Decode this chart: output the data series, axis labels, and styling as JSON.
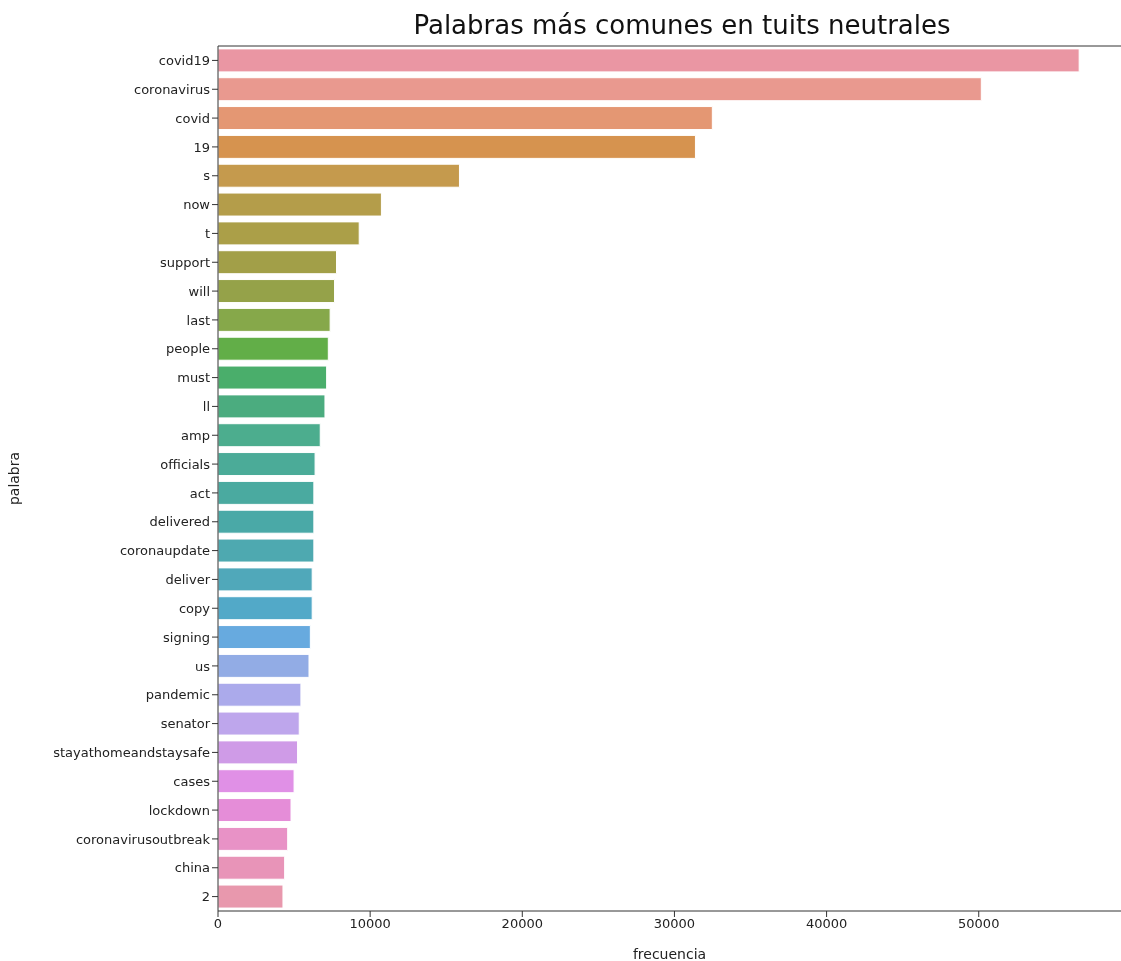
{
  "chart_data": {
    "type": "bar",
    "orientation": "horizontal",
    "title": "Palabras más comunes en tuits neutrales",
    "xlabel": "frecuencia",
    "ylabel": "palabra",
    "categories": [
      "covid19",
      "coronavirus",
      "covid",
      "19",
      "s",
      "now",
      "t",
      "support",
      "will",
      "last",
      "people",
      "must",
      "ll",
      "amp",
      "officials",
      "act",
      "delivered",
      "coronaupdate",
      "deliver",
      "copy",
      "signing",
      "us",
      "pandemic",
      "senator",
      "stayathomeandstaysafe",
      "cases",
      "lockdown",
      "coronavirusoutbreak",
      "china",
      "2"
    ],
    "values": [
      56600,
      50170,
      32490,
      31380,
      15870,
      10740,
      9280,
      7790,
      7660,
      7370,
      7250,
      7140,
      7030,
      6720,
      6380,
      6300,
      6300,
      6300,
      6190,
      6190,
      6070,
      5980,
      5450,
      5340,
      5230,
      5000,
      4800,
      4580,
      4380,
      4270
    ],
    "colors": [
      "#ea96a3",
      "#e9998f",
      "#e49773",
      "#d6934f",
      "#c59a4d",
      "#b49d4a",
      "#ab9f48",
      "#a29f48",
      "#95a249",
      "#86a84a",
      "#62ae48",
      "#4aae6b",
      "#4bac7f",
      "#4cad8e",
      "#4bab98",
      "#4aaaa0",
      "#4aa9a7",
      "#4ea9b0",
      "#50a8ba",
      "#52a9c8",
      "#67aadf",
      "#92ace5",
      "#abaaeb",
      "#bea6ec",
      "#cf9be7",
      "#e090e6",
      "#e58dd8",
      "#e892c6",
      "#e894b8",
      "#e898ad"
    ],
    "xlim": [
      0,
      59350
    ],
    "xticks": [
      0,
      10000,
      20000,
      30000,
      40000,
      50000
    ],
    "grid": false
  }
}
